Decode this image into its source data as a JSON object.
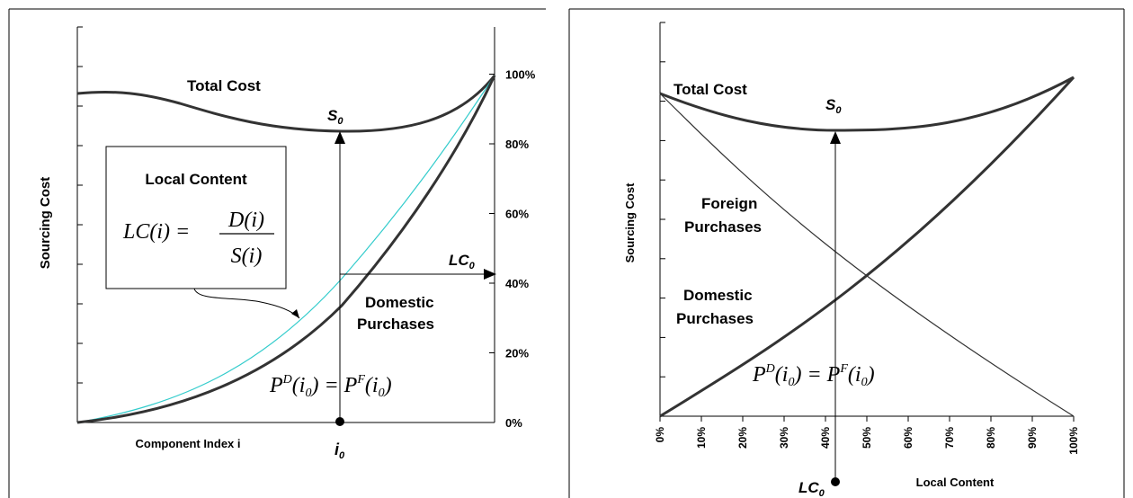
{
  "left_panel": {
    "title_curve": "Total Cost",
    "s0_label": "S",
    "s0_sub": "0",
    "lc0_label": "LC",
    "lc0_sub": "0",
    "y_label": "Sourcing Cost",
    "x_label": "Component Index i",
    "i0_label": "i",
    "i0_sub": "0",
    "right_axis_ticks": [
      "0%",
      "20%",
      "40%",
      "60%",
      "80%",
      "100%"
    ],
    "local_content_box_title": "Local Content",
    "lc_formula_lhs": "LC(i) =",
    "lc_formula_num": "D(i)",
    "lc_formula_den": "S(i)",
    "domestic_label_line1": "Domestic",
    "domestic_label_line2": "Purchases",
    "equation": "P^D(i0) = P^F(i0)"
  },
  "right_panel": {
    "title_curve": "Total Cost",
    "s0_label": "S",
    "s0_sub": "0",
    "y_label": "Sourcing Cost",
    "x_label": "Local Content",
    "lc0_label": "LC",
    "lc0_sub": "0",
    "foreign_label_line1": "Foreign",
    "foreign_label_line2": "Purchases",
    "domestic_label_line1": "Domestic",
    "domestic_label_line2": "Purchases",
    "x_ticks": [
      "0%",
      "10%",
      "20%",
      "30%",
      "40%",
      "50%",
      "60%",
      "70%",
      "80%",
      "90%",
      "100%"
    ],
    "equation": "P^D(i0) = P^F(i0)"
  },
  "colors": {
    "curve": "#333333",
    "lc_curve": "#33cccc",
    "frame": "#000000"
  }
}
